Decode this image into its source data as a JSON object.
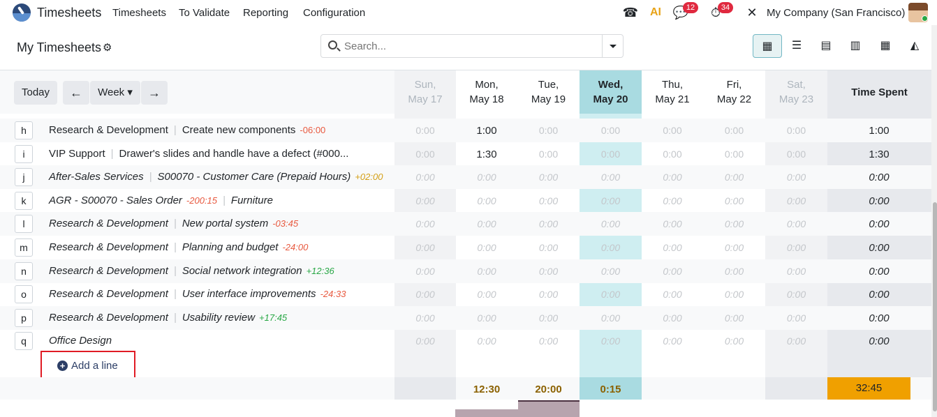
{
  "nav": {
    "app_name": "Timesheets",
    "menu": [
      "Timesheets",
      "To Validate",
      "Reporting",
      "Configuration"
    ],
    "chat_badge": "12",
    "activity_badge": "34",
    "company": "My Company (San Francisco)"
  },
  "control": {
    "title": "My Timesheets",
    "search_placeholder": "Search..."
  },
  "grid": {
    "today_label": "Today",
    "range_label": "Week",
    "days": [
      {
        "name": "Sun,",
        "date": "May 17"
      },
      {
        "name": "Mon,",
        "date": "May 18"
      },
      {
        "name": "Tue,",
        "date": "May 19"
      },
      {
        "name": "Wed,",
        "date": "May 20"
      },
      {
        "name": "Thu,",
        "date": "May 21"
      },
      {
        "name": "Fri,",
        "date": "May 22"
      },
      {
        "name": "Sat,",
        "date": "May 23"
      }
    ],
    "total_header": "Time Spent",
    "rows": [
      {
        "key": "h",
        "project": "Research & Development",
        "task": "Create new components",
        "delta": "-06:00",
        "sign": "neg",
        "italic": false,
        "values": [
          "0:00",
          "1:00",
          "0:00",
          "0:00",
          "0:00",
          "0:00",
          "0:00"
        ],
        "total": "1:00"
      },
      {
        "key": "i",
        "project": "VIP Support",
        "task": "Drawer's slides and handle have a defect (#000...",
        "delta": "",
        "sign": "",
        "italic": false,
        "values": [
          "0:00",
          "1:30",
          "0:00",
          "0:00",
          "0:00",
          "0:00",
          "0:00"
        ],
        "total": "1:30"
      },
      {
        "key": "j",
        "project": "After-Sales Services",
        "task": "S00070 - Customer Care (Prepaid Hours)",
        "delta": "+02:00",
        "sign": "pos2",
        "italic": true,
        "values": [
          "0:00",
          "0:00",
          "0:00",
          "0:00",
          "0:00",
          "0:00",
          "0:00"
        ],
        "total": "0:00"
      },
      {
        "key": "k",
        "project": "AGR - S00070 - Sales Order",
        "task": "Furniture",
        "delta": "-200:15",
        "sign": "neg",
        "italic": true,
        "delta_first": true,
        "values": [
          "0:00",
          "0:00",
          "0:00",
          "0:00",
          "0:00",
          "0:00",
          "0:00"
        ],
        "total": "0:00"
      },
      {
        "key": "l",
        "project": "Research & Development",
        "task": "New portal system",
        "delta": "-03:45",
        "sign": "neg",
        "italic": true,
        "values": [
          "0:00",
          "0:00",
          "0:00",
          "0:00",
          "0:00",
          "0:00",
          "0:00"
        ],
        "total": "0:00"
      },
      {
        "key": "m",
        "project": "Research & Development",
        "task": "Planning and budget",
        "delta": "-24:00",
        "sign": "neg",
        "italic": true,
        "values": [
          "0:00",
          "0:00",
          "0:00",
          "0:00",
          "0:00",
          "0:00",
          "0:00"
        ],
        "total": "0:00"
      },
      {
        "key": "n",
        "project": "Research & Development",
        "task": "Social network integration",
        "delta": "+12:36",
        "sign": "pos",
        "italic": true,
        "values": [
          "0:00",
          "0:00",
          "0:00",
          "0:00",
          "0:00",
          "0:00",
          "0:00"
        ],
        "total": "0:00"
      },
      {
        "key": "o",
        "project": "Research & Development",
        "task": "User interface improvements",
        "delta": "-24:33",
        "sign": "neg",
        "italic": true,
        "values": [
          "0:00",
          "0:00",
          "0:00",
          "0:00",
          "0:00",
          "0:00",
          "0:00"
        ],
        "total": "0:00"
      },
      {
        "key": "p",
        "project": "Research & Development",
        "task": "Usability review",
        "delta": "+17:45",
        "sign": "pos",
        "italic": true,
        "values": [
          "0:00",
          "0:00",
          "0:00",
          "0:00",
          "0:00",
          "0:00",
          "0:00"
        ],
        "total": "0:00"
      },
      {
        "key": "q",
        "project": "Office Design",
        "task": "",
        "delta": "",
        "sign": "",
        "italic": true,
        "values": [
          "0:00",
          "0:00",
          "0:00",
          "0:00",
          "0:00",
          "0:00",
          "0:00"
        ],
        "total": "0:00"
      }
    ],
    "add_line_label": "Add a line",
    "day_totals": [
      "",
      "12:30",
      "20:00",
      "0:15",
      "",
      "",
      ""
    ],
    "grand_total": "32:45"
  }
}
